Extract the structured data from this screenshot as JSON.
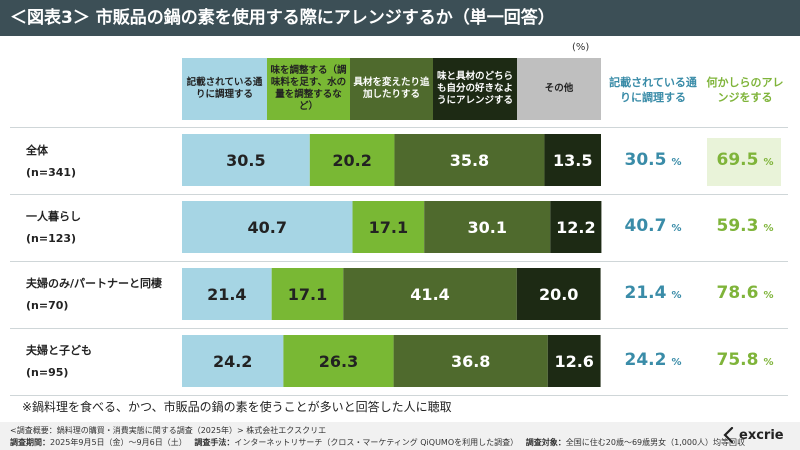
{
  "title": "＜図表3＞ 市販品の鍋の素を使用する際にアレンジするか（単一回答）",
  "unit": "(%)",
  "colors": {
    "title_bg": "#3c4f56",
    "cat1": "#a6d5e4",
    "cat2": "#79b834",
    "cat3": "#4f6a2d",
    "cat4": "#1d2a14",
    "other_header": "#bfbfbf",
    "blue_text": "#3a8ca8",
    "green_text": "#7fb43a"
  },
  "headers": {
    "cat1": "記載されている通りに調理する",
    "cat2": "味を調整する（調味料を足す、水の量を調整するなど）",
    "cat3": "具材を変えたり追加したりする",
    "cat4": "味と具材のどちらも自分の好きなようにアレンジする",
    "cat5": "その他",
    "sum1": "記載されている通りに調理する",
    "sum2": "何かしらのアレンジをする"
  },
  "chart_data": {
    "type": "bar",
    "orientation": "horizontal",
    "stacked": "percent",
    "categories": [
      "全体",
      "一人暮らし",
      "夫婦のみ/パートナーと同棲",
      "夫婦と子ども"
    ],
    "sample_sizes": [
      "(n=341)",
      "(n=123)",
      "(n=70)",
      "(n=95)"
    ],
    "series": [
      {
        "name": "記載されている通りに調理する",
        "values": [
          30.5,
          40.7,
          21.4,
          24.2
        ]
      },
      {
        "name": "味を調整する（調味料を足す、水の量を調整するなど）",
        "values": [
          20.2,
          17.1,
          17.1,
          26.3
        ]
      },
      {
        "name": "具材を変えたり追加したりする",
        "values": [
          35.8,
          30.1,
          41.4,
          36.8
        ]
      },
      {
        "name": "味と具材のどちらも自分の好きなようにアレンジする",
        "values": [
          13.5,
          12.2,
          20.0,
          12.6
        ]
      },
      {
        "name": "その他",
        "values": [
          0,
          0,
          0,
          0
        ]
      }
    ],
    "value_labels": [
      [
        "30.5",
        "20.2",
        "35.8",
        "13.5"
      ],
      [
        "40.7",
        "17.1",
        "30.1",
        "12.2"
      ],
      [
        "21.4",
        "17.1",
        "41.4",
        "20.0"
      ],
      [
        "24.2",
        "26.3",
        "36.8",
        "12.6"
      ]
    ],
    "summary_as_written": [
      "30.5",
      "40.7",
      "21.4",
      "24.2"
    ],
    "summary_any_arrange": [
      "69.5",
      "59.3",
      "78.6",
      "75.8"
    ],
    "summary_unit": "%",
    "xlim": [
      0,
      100
    ]
  },
  "footnote": "※鍋料理を食べる、かつ、市販品の鍋の素を使うことが多いと回答した人に聴取",
  "survey": {
    "overview": "<調査概要：鍋料理の購買・消費実態に関する調査（2025年）> 株式会社エクスクリエ",
    "period_label": "調査期間：",
    "period": "2025年9月5日（金）～9月6日（土）",
    "method_label": "調査手法：",
    "method": "インターネットリサーチ（クロス・マーケティング QiQUMOを利用した調査）",
    "target_label": "調査対象：",
    "target": "全国に住む20歳～69歳男女（1,000人）均等回収"
  },
  "logo_text": "excrie",
  "logo_icon": "slash-arrow-icon"
}
